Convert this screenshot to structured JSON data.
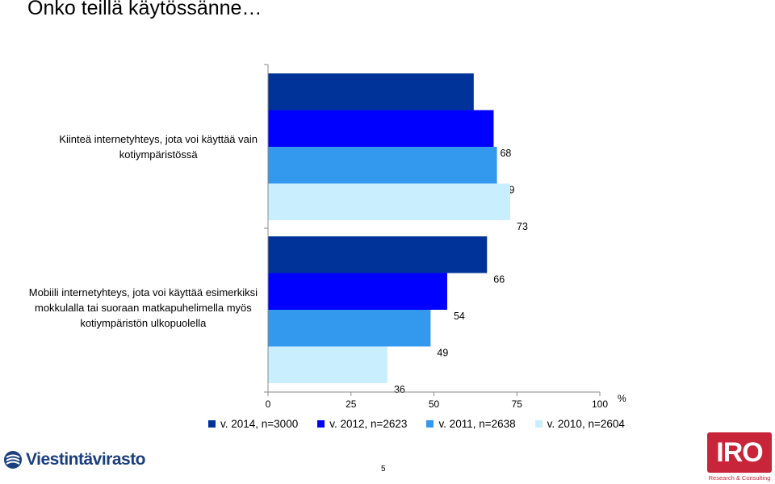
{
  "slide": {
    "title": "Onko teillä käytössänne…",
    "page_number": "5"
  },
  "chart_data": {
    "type": "bar",
    "orientation": "horizontal",
    "categories": [
      "Kiinteä internetyhteys, jota voi käyttää vain\nkotiympäristössä",
      "Mobiili internetyhteys, jota voi käyttää esimerkiksi\nmokkulalla tai suoraan matkapuhelimella myös\nkotiympäristön ulkopuolella"
    ],
    "series": [
      {
        "name": "v. 2014, n=3000",
        "color": "#003399",
        "values": [
          62,
          66
        ]
      },
      {
        "name": "v. 2012, n=2623",
        "color": "#0000ff",
        "values": [
          68,
          54
        ]
      },
      {
        "name": "v. 2011, n=2638",
        "color": "#3399ee",
        "values": [
          69,
          49
        ]
      },
      {
        "name": "v. 2010, n=2604",
        "color": "#c9efff",
        "values": [
          73,
          36
        ]
      }
    ],
    "xlim": [
      0,
      100
    ],
    "x_ticks": [
      "0",
      "25",
      "50",
      "75",
      "100"
    ],
    "xlabel": "%",
    "grid": false,
    "legend_position": "bottom"
  },
  "logos": {
    "left": "Viestintävirasto",
    "right_main": "IRO",
    "right_sub": "Research & Consulting"
  }
}
